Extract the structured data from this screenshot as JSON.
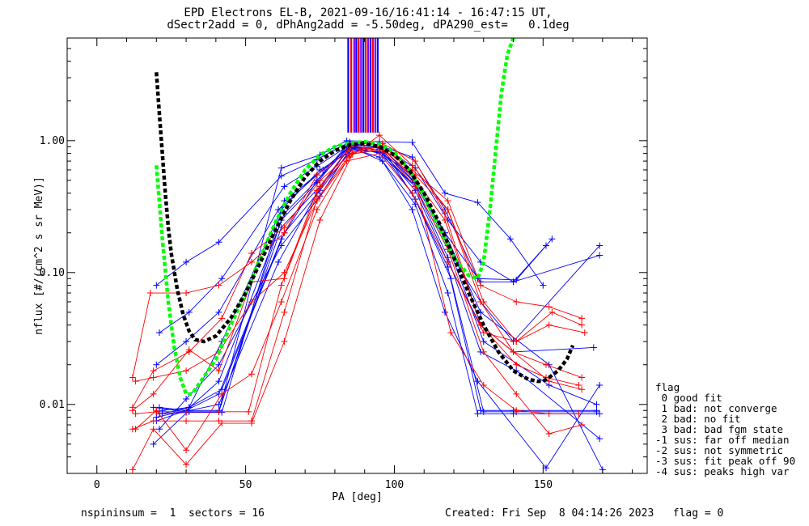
{
  "title_line1": "EPD Electrons EL-B, 2021-09-16/16:41:14 - 16:47:15 UT,",
  "title_line2": "dSectr2add = 0, dPhAng2add = -5.50deg, dPA290_est=   0.1deg",
  "footer_left": "nspininsum =  1  sectors = 16",
  "footer_right": "Created: Fri Sep  8 04:14:26 2023   flag = 0",
  "legend": {
    "title": "flag",
    "items": [
      " 0 good fit",
      " 1 bad: not converge",
      " 2 bad: no fit",
      " 3 bad: bad fgm state",
      "-1 sus: far off median",
      "-2 sus: not symmetric",
      "-3 sus: fit peak off 90",
      "-4 sus: peaks high var"
    ]
  },
  "colors": {
    "red": "#ff0000",
    "blue": "#0000ff",
    "green": "#00ff00",
    "black": "#000000",
    "stripe_purple": "#8000ff"
  },
  "chart_data": {
    "type": "line",
    "xlabel": "PA [deg]",
    "ylabel": "nflux [#/(cm^2 s sr MeV)]",
    "xlim": [
      -10,
      185
    ],
    "ylim": [
      0.003,
      6
    ],
    "yscale": "log",
    "xticks": [
      0,
      50,
      100,
      150
    ],
    "xtick_labels": [
      "0",
      "50",
      "100",
      "150"
    ],
    "yticks": [
      0.01,
      0.1,
      1.0
    ],
    "ytick_labels": [
      "0.01",
      "0.10",
      "1.00"
    ],
    "vertical_stripes_pa": [
      84.5,
      85.5,
      86.5,
      87.2,
      88.0,
      88.8,
      89.6,
      90.4,
      91.2,
      92.0,
      92.8,
      93.6,
      94.4
    ],
    "vertical_stripes_range": [
      1.15,
      6
    ],
    "green_fit_curve": {
      "x": [
        20,
        22,
        24,
        26,
        28,
        30,
        32,
        35,
        40,
        45,
        50,
        55,
        60,
        65,
        70,
        75,
        80,
        85,
        90,
        95,
        100,
        105,
        110,
        115,
        120,
        125,
        128,
        130,
        132,
        134,
        136,
        138,
        140
      ],
      "y": [
        0.65,
        0.18,
        0.06,
        0.027,
        0.016,
        0.012,
        0.012,
        0.015,
        0.022,
        0.04,
        0.07,
        0.13,
        0.24,
        0.4,
        0.6,
        0.78,
        0.9,
        0.96,
        0.98,
        0.94,
        0.82,
        0.6,
        0.38,
        0.22,
        0.13,
        0.095,
        0.09,
        0.12,
        0.28,
        0.8,
        2.3,
        4.5,
        6
      ]
    },
    "black_fit_curve": {
      "x": [
        20,
        21,
        22,
        23,
        24,
        25,
        27,
        29,
        31,
        33,
        36,
        40,
        45,
        50,
        55,
        60,
        65,
        70,
        75,
        80,
        85,
        90,
        95,
        100,
        105,
        110,
        115,
        120,
        125,
        130,
        135,
        140,
        145,
        148,
        150,
        152,
        155,
        158,
        160
      ],
      "y": [
        3.3,
        1.6,
        0.8,
        0.4,
        0.22,
        0.14,
        0.075,
        0.048,
        0.036,
        0.031,
        0.03,
        0.033,
        0.045,
        0.07,
        0.12,
        0.21,
        0.35,
        0.53,
        0.7,
        0.84,
        0.93,
        0.95,
        0.9,
        0.78,
        0.6,
        0.4,
        0.24,
        0.13,
        0.07,
        0.04,
        0.025,
        0.018,
        0.0155,
        0.015,
        0.015,
        0.016,
        0.018,
        0.022,
        0.028
      ]
    },
    "series": [
      {
        "color": "blue",
        "x": [
          19,
          30,
          41,
          62,
          75,
          84,
          95,
          106,
          117,
          128,
          139,
          150
        ],
        "y": [
          0.0095,
          0.0088,
          0.0088,
          0.62,
          0.78,
          1.0,
          0.98,
          0.97,
          0.4,
          0.34,
          0.18,
          0.08
        ]
      },
      {
        "color": "blue",
        "x": [
          20,
          30,
          41,
          62,
          74,
          85,
          95,
          106,
          117,
          128,
          141,
          153
        ],
        "y": [
          0.08,
          0.12,
          0.17,
          0.54,
          0.72,
          0.98,
          0.92,
          0.75,
          0.3,
          0.09,
          0.088,
          0.18
        ]
      },
      {
        "color": "blue",
        "x": [
          21,
          31,
          42,
          63,
          74,
          85,
          96,
          107,
          118,
          129,
          140,
          151
        ],
        "y": [
          0.035,
          0.05,
          0.09,
          0.45,
          0.64,
          0.93,
          0.9,
          0.62,
          0.25,
          0.12,
          0.085,
          0.16
        ]
      },
      {
        "color": "blue",
        "x": [
          20,
          30,
          41,
          61,
          74,
          85,
          95,
          106,
          117,
          129,
          140,
          169
        ],
        "y": [
          0.02,
          0.03,
          0.05,
          0.3,
          0.55,
          0.9,
          0.88,
          0.5,
          0.2,
          0.085,
          0.085,
          0.135
        ]
      },
      {
        "color": "blue",
        "x": [
          22,
          31,
          42,
          63,
          75,
          86,
          96,
          107,
          118,
          129,
          140,
          169
        ],
        "y": [
          0.0085,
          0.0095,
          0.013,
          0.2,
          0.42,
          0.88,
          0.8,
          0.45,
          0.15,
          0.06,
          0.03,
          0.16
        ]
      },
      {
        "color": "blue",
        "x": [
          21,
          30,
          41,
          62,
          75,
          85,
          96,
          107,
          118,
          129,
          140,
          167
        ],
        "y": [
          0.0065,
          0.011,
          0.02,
          0.16,
          0.38,
          0.86,
          0.82,
          0.42,
          0.12,
          0.04,
          0.025,
          0.027
        ]
      },
      {
        "color": "blue",
        "x": [
          20,
          31,
          41,
          62,
          74,
          84,
          95,
          106,
          118,
          129,
          140,
          168
        ],
        "y": [
          0.0088,
          0.0088,
          0.0088,
          0.25,
          0.48,
          0.9,
          0.85,
          0.4,
          0.11,
          0.009,
          0.009,
          0.009
        ]
      },
      {
        "color": "blue",
        "x": [
          21,
          30,
          42,
          63,
          76,
          86,
          96,
          107,
          119,
          130,
          141,
          168
        ],
        "y": [
          0.0085,
          0.0087,
          0.0087,
          0.35,
          0.6,
          0.95,
          0.88,
          0.36,
          0.09,
          0.0088,
          0.0088,
          0.0088
        ]
      },
      {
        "color": "blue",
        "x": [
          20,
          30,
          41,
          62,
          75,
          85,
          95,
          107,
          118,
          128,
          140,
          169
        ],
        "y": [
          0.0075,
          0.009,
          0.009,
          0.22,
          0.45,
          0.88,
          0.75,
          0.33,
          0.07,
          0.0085,
          0.0085,
          0.0085
        ]
      },
      {
        "color": "blue",
        "x": [
          19,
          31,
          41,
          61,
          74,
          85,
          96,
          106,
          117,
          128,
          151,
          169
        ],
        "y": [
          0.005,
          0.009,
          0.01,
          0.12,
          0.4,
          0.9,
          0.7,
          0.3,
          0.05,
          0.015,
          0.0033,
          0.014
        ]
      },
      {
        "color": "blue",
        "x": [
          21,
          30,
          41,
          63,
          74,
          84,
          95,
          107,
          118,
          129,
          141,
          169
        ],
        "y": [
          0.0095,
          0.009,
          0.015,
          0.28,
          0.5,
          0.92,
          0.8,
          0.45,
          0.13,
          0.025,
          0.018,
          0.0055
        ]
      },
      {
        "color": "blue",
        "x": [
          22,
          31,
          42,
          62,
          75,
          86,
          95,
          106,
          117,
          129,
          152,
          170
        ],
        "y": [
          0.009,
          0.0095,
          0.03,
          0.3,
          0.6,
          0.85,
          0.82,
          0.55,
          0.2,
          0.05,
          0.02,
          0.0032
        ]
      },
      {
        "color": "blue",
        "x": [
          20,
          30,
          41,
          62,
          74,
          85,
          96,
          107,
          118,
          130,
          152,
          168
        ],
        "y": [
          0.008,
          0.009,
          0.012,
          0.18,
          0.5,
          0.9,
          0.88,
          0.48,
          0.16,
          0.03,
          0.014,
          0.01
        ]
      },
      {
        "color": "red",
        "x": [
          12,
          18,
          30,
          41,
          52,
          63,
          74,
          85,
          95,
          106,
          118,
          129,
          141,
          152,
          163
        ],
        "y": [
          0.016,
          0.07,
          0.07,
          0.08,
          0.12,
          0.2,
          0.55,
          0.85,
          0.9,
          0.6,
          0.35,
          0.08,
          0.06,
          0.055,
          0.045
        ]
      },
      {
        "color": "red",
        "x": [
          12,
          19,
          31,
          42,
          52,
          63,
          75,
          86,
          96,
          107,
          118,
          130,
          141,
          152,
          164
        ],
        "y": [
          0.0095,
          0.018,
          0.025,
          0.045,
          0.14,
          0.22,
          0.5,
          0.82,
          0.92,
          0.55,
          0.3,
          0.06,
          0.03,
          0.04,
          0.035
        ]
      },
      {
        "color": "red",
        "x": [
          13,
          20,
          30,
          41,
          51,
          62,
          74,
          85,
          95,
          106,
          117,
          129,
          140,
          151,
          163
        ],
        "y": [
          0.0085,
          0.0088,
          0.0088,
          0.0088,
          0.0088,
          0.08,
          0.42,
          0.8,
          0.9,
          0.55,
          0.25,
          0.04,
          0.025,
          0.02,
          0.016
        ]
      },
      {
        "color": "red",
        "x": [
          12,
          19,
          30,
          41,
          52,
          63,
          74,
          85,
          96,
          107,
          119,
          130,
          141,
          152,
          162
        ],
        "y": [
          0.0065,
          0.0075,
          0.0075,
          0.0075,
          0.0075,
          0.05,
          0.36,
          0.78,
          0.88,
          0.5,
          0.035,
          0.014,
          0.009,
          0.0085,
          0.0085
        ]
      },
      {
        "color": "red",
        "x": [
          12,
          19,
          30,
          42,
          52,
          63,
          75,
          86,
          96,
          107,
          118,
          130,
          141,
          152,
          163
        ],
        "y": [
          0.0032,
          0.0065,
          0.0035,
          0.0072,
          0.0072,
          0.03,
          0.25,
          0.8,
          0.85,
          0.45,
          0.15,
          0.025,
          0.012,
          0.006,
          0.007
        ]
      },
      {
        "color": "red",
        "x": [
          13,
          19,
          30,
          41,
          52,
          63,
          74,
          85,
          95,
          106,
          118,
          129,
          140,
          152,
          163
        ],
        "y": [
          0.015,
          0.016,
          0.018,
          0.025,
          0.06,
          0.1,
          0.35,
          0.75,
          1.1,
          0.65,
          0.3,
          0.06,
          0.025,
          0.015,
          0.013
        ]
      },
      {
        "color": "red",
        "x": [
          12,
          19,
          31,
          41,
          52,
          63,
          75,
          85,
          96,
          107,
          117,
          129,
          141,
          151,
          162
        ],
        "y": [
          0.009,
          0.012,
          0.026,
          0.018,
          0.085,
          0.09,
          0.45,
          0.9,
          0.95,
          0.7,
          0.28,
          0.04,
          0.02,
          0.016,
          0.014
        ]
      },
      {
        "color": "red",
        "x": [
          13,
          20,
          30,
          42,
          52,
          62,
          74,
          84,
          95,
          106,
          118,
          130,
          141,
          153,
          163
        ],
        "y": [
          0.0065,
          0.009,
          0.0045,
          0.012,
          0.017,
          0.06,
          0.3,
          0.7,
          0.8,
          0.4,
          0.12,
          0.035,
          0.03,
          0.05,
          0.04
        ]
      }
    ]
  }
}
